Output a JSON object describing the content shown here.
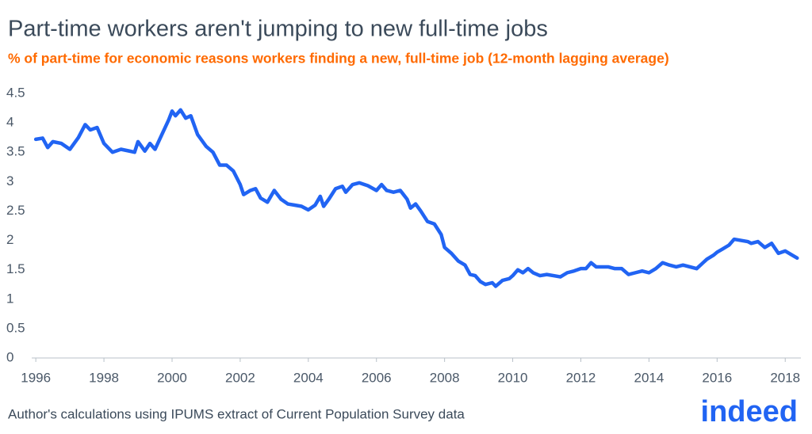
{
  "chart_data": {
    "type": "line",
    "title": "Part-time workers aren't jumping to new full-time jobs",
    "subtitle": "% of part-time for economic reasons workers finding a new, full-time job (12-month lagging average)",
    "source": "Author's calculations using IPUMS extract of Current Population Survey data",
    "logo": "indeed",
    "xlim": [
      1995.88,
      2018.46
    ],
    "xticks": [
      1996,
      1998,
      2000,
      2002,
      2004,
      2006,
      2008,
      2010,
      2012,
      2014,
      2016,
      2018
    ],
    "ylim": [
      0,
      4.5
    ],
    "yticks": [
      0,
      0.5,
      1,
      1.5,
      2,
      2.5,
      3,
      3.5,
      4,
      4.5
    ],
    "grid": false,
    "x": [
      1996.0,
      1996.2,
      1996.35,
      1996.5,
      1996.75,
      1997.0,
      1997.25,
      1997.45,
      1997.6,
      1997.8,
      1998.0,
      1998.25,
      1998.5,
      1998.75,
      1998.9,
      1999.0,
      1999.2,
      1999.35,
      1999.5,
      1999.7,
      1999.9,
      2000.0,
      2000.1,
      2000.25,
      2000.4,
      2000.55,
      2000.75,
      2001.0,
      2001.2,
      2001.4,
      2001.6,
      2001.8,
      2002.0,
      2002.1,
      2002.3,
      2002.45,
      2002.6,
      2002.8,
      2003.0,
      2003.2,
      2003.4,
      2003.6,
      2003.8,
      2004.0,
      2004.2,
      2004.35,
      2004.45,
      2004.6,
      2004.8,
      2005.0,
      2005.1,
      2005.3,
      2005.5,
      2005.75,
      2006.0,
      2006.15,
      2006.3,
      2006.5,
      2006.7,
      2006.9,
      2007.0,
      2007.15,
      2007.3,
      2007.5,
      2007.7,
      2007.9,
      2008.0,
      2008.2,
      2008.4,
      2008.6,
      2008.75,
      2008.9,
      2009.05,
      2009.2,
      2009.4,
      2009.5,
      2009.7,
      2009.9,
      2010.0,
      2010.15,
      2010.3,
      2010.45,
      2010.6,
      2010.8,
      2011.0,
      2011.2,
      2011.4,
      2011.6,
      2011.8,
      2012.0,
      2012.15,
      2012.3,
      2012.45,
      2012.6,
      2012.8,
      2013.0,
      2013.2,
      2013.4,
      2013.6,
      2013.8,
      2014.0,
      2014.2,
      2014.4,
      2014.6,
      2014.8,
      2015.0,
      2015.2,
      2015.4,
      2015.55,
      2015.7,
      2015.9,
      2016.0,
      2016.15,
      2016.35,
      2016.5,
      2016.7,
      2016.9,
      2017.0,
      2017.2,
      2017.4,
      2017.6,
      2017.8,
      2018.0,
      2018.2,
      2018.35
    ],
    "series": [
      {
        "color": "#2164f3",
        "values": [
          3.72,
          3.74,
          3.58,
          3.68,
          3.65,
          3.55,
          3.75,
          3.97,
          3.88,
          3.92,
          3.65,
          3.5,
          3.55,
          3.52,
          3.5,
          3.68,
          3.52,
          3.65,
          3.55,
          3.8,
          4.05,
          4.2,
          4.12,
          4.22,
          4.08,
          4.12,
          3.8,
          3.6,
          3.5,
          3.28,
          3.28,
          3.18,
          2.95,
          2.78,
          2.85,
          2.88,
          2.72,
          2.65,
          2.85,
          2.7,
          2.62,
          2.6,
          2.58,
          2.52,
          2.6,
          2.75,
          2.58,
          2.7,
          2.88,
          2.92,
          2.82,
          2.95,
          2.98,
          2.93,
          2.85,
          2.95,
          2.85,
          2.82,
          2.85,
          2.7,
          2.55,
          2.62,
          2.5,
          2.32,
          2.28,
          2.1,
          1.88,
          1.78,
          1.65,
          1.58,
          1.42,
          1.4,
          1.3,
          1.25,
          1.28,
          1.22,
          1.32,
          1.35,
          1.4,
          1.5,
          1.45,
          1.52,
          1.45,
          1.4,
          1.42,
          1.4,
          1.38,
          1.45,
          1.48,
          1.52,
          1.52,
          1.62,
          1.55,
          1.55,
          1.55,
          1.52,
          1.52,
          1.42,
          1.45,
          1.48,
          1.45,
          1.52,
          1.62,
          1.58,
          1.55,
          1.58,
          1.55,
          1.52,
          1.6,
          1.68,
          1.75,
          1.8,
          1.85,
          1.92,
          2.02,
          2.0,
          1.98,
          1.95,
          1.98,
          1.88,
          1.95,
          1.78,
          1.82,
          1.75,
          1.7
        ]
      }
    ]
  }
}
